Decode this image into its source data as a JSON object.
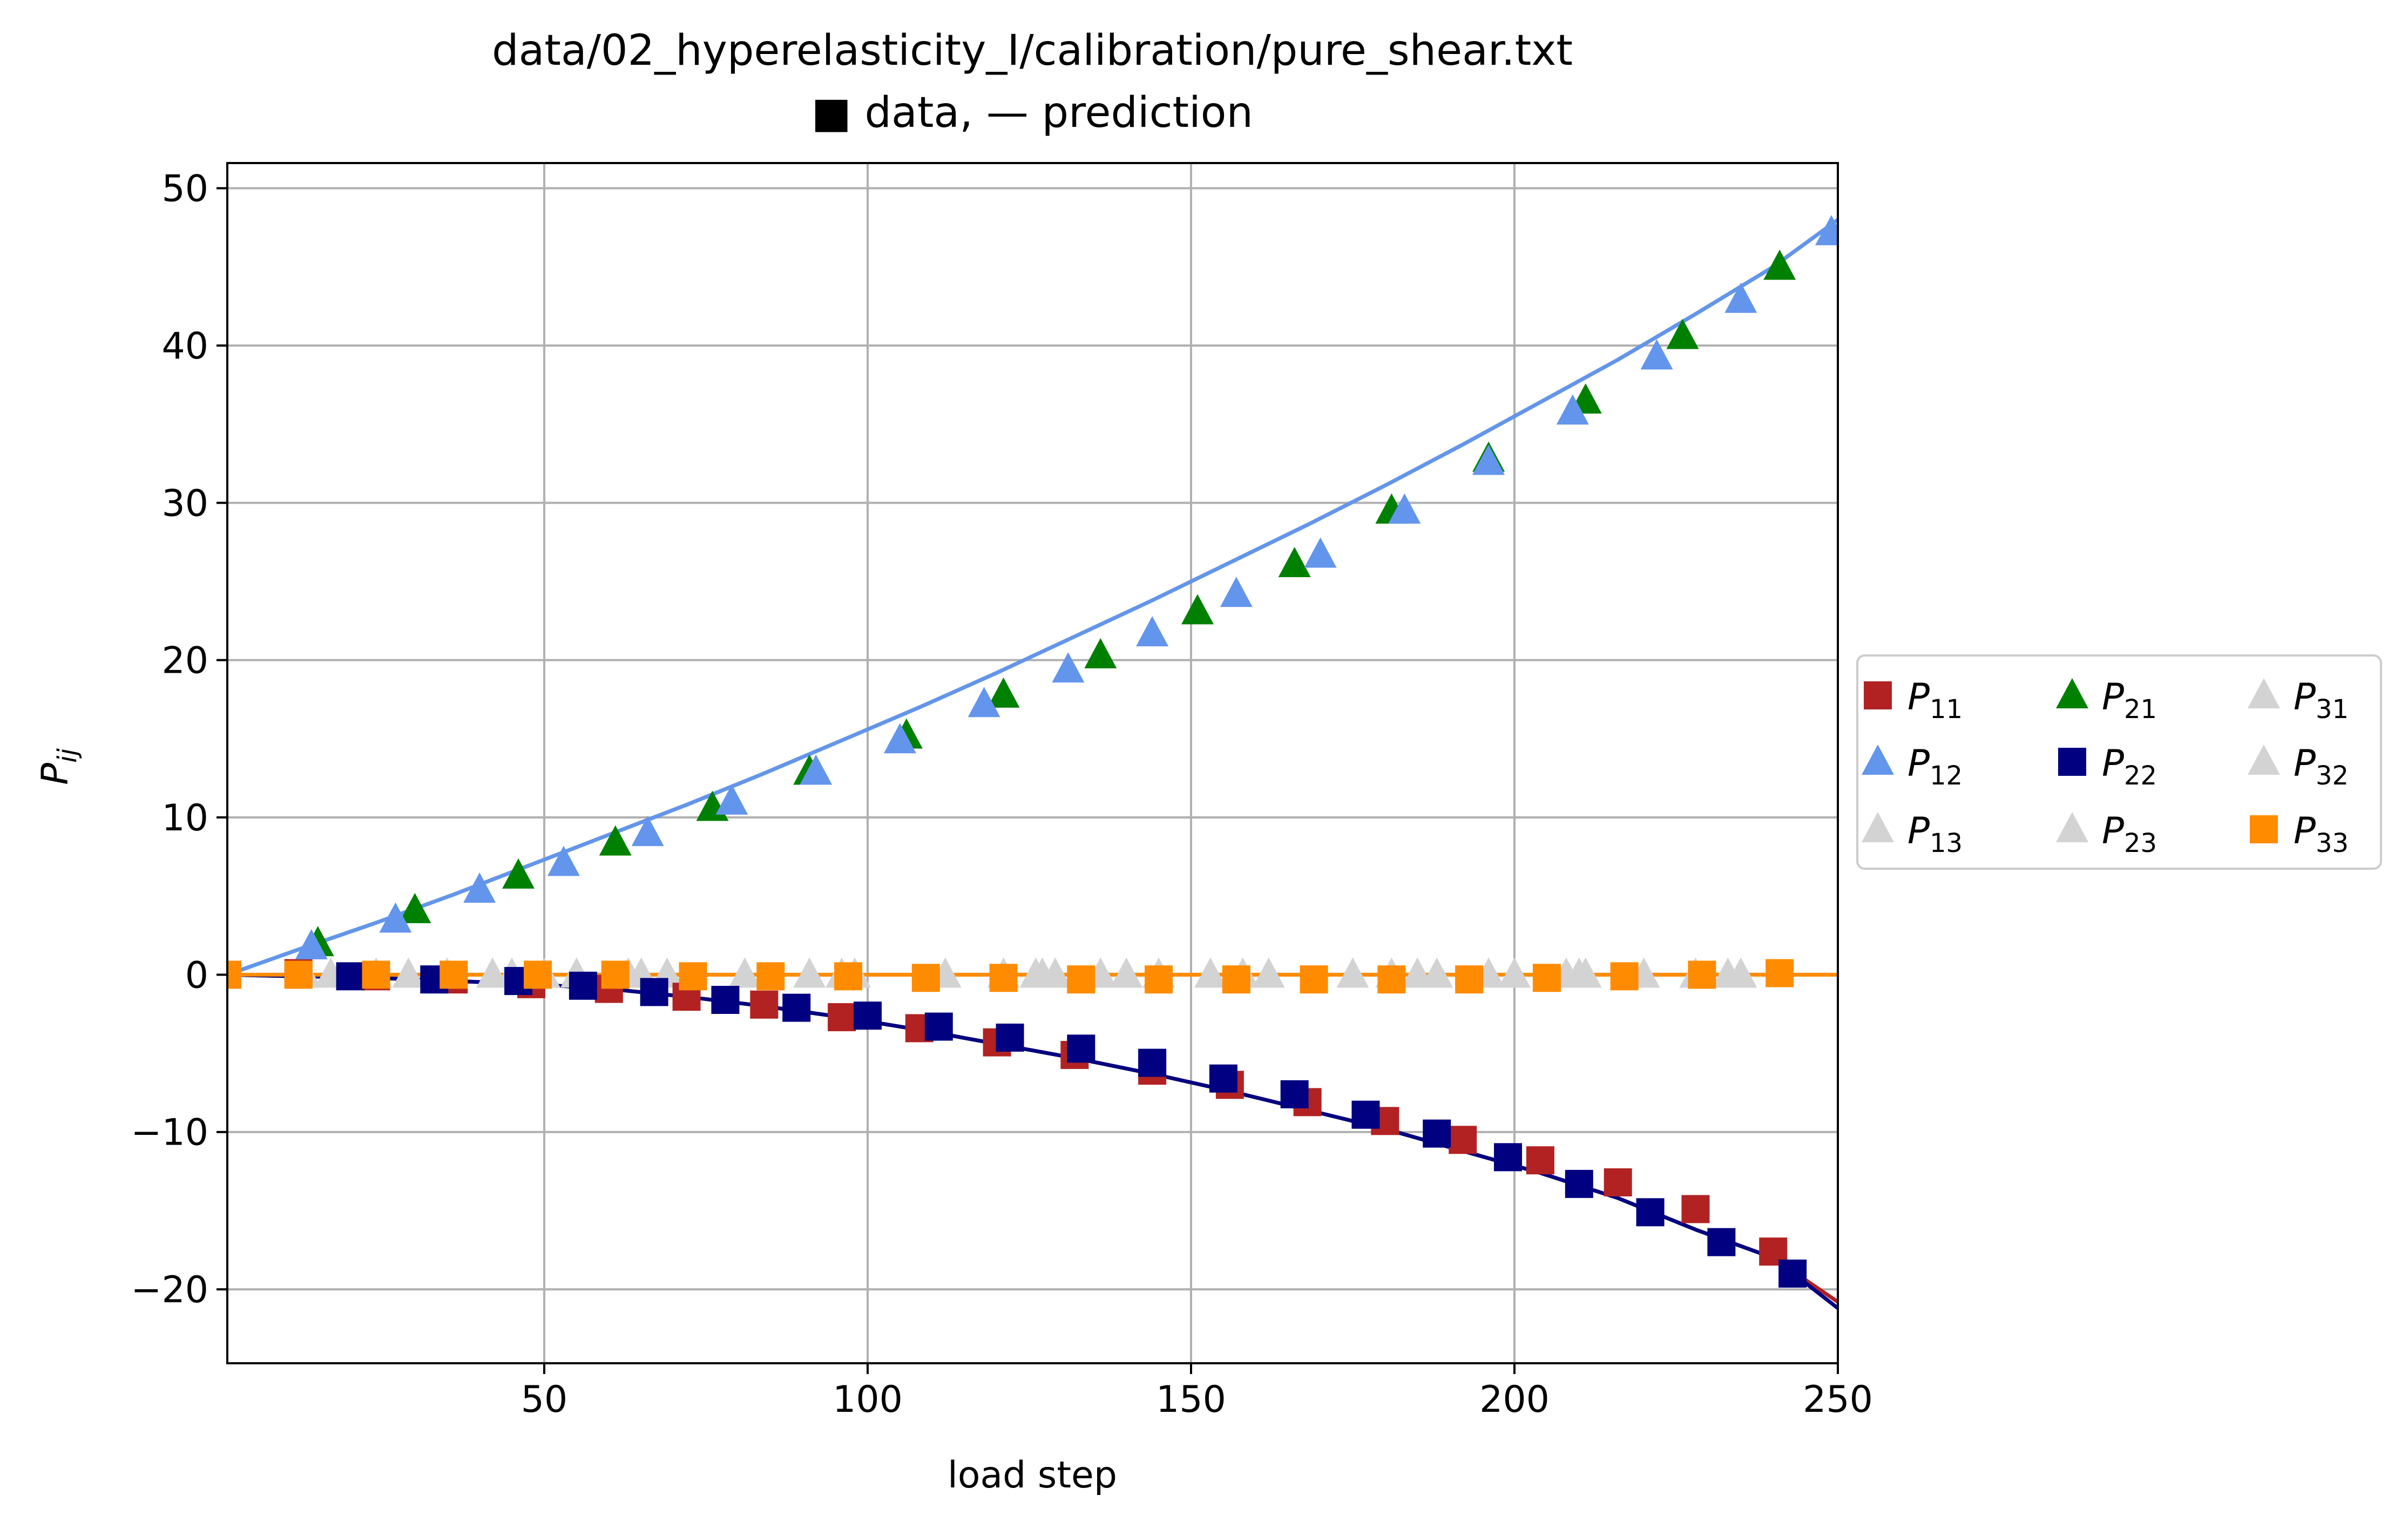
{
  "chart_data": {
    "type": "line",
    "title": "data/02_hyperelasticity_I/calibration/pure_shear.txt",
    "subtitle": "■ data, — prediction",
    "xlabel": "load step",
    "ylabel": "P",
    "ylabel_sub": "ij",
    "xlim": [
      1,
      250
    ],
    "ylim": [
      -24.7,
      51.6
    ],
    "xticks": [
      50,
      100,
      150,
      200,
      250
    ],
    "yticks": [
      50,
      40,
      30,
      20,
      10,
      0,
      -10,
      -20
    ],
    "xtick_labels": [
      "50",
      "100",
      "150",
      "200",
      "250"
    ],
    "ytick_labels": [
      "50",
      "40",
      "30",
      "20",
      "10",
      "0",
      "−10",
      "−20"
    ],
    "grid": true,
    "legend_position": "outside-right",
    "series": [
      {
        "name": "P",
        "sub": "11",
        "color": "#b22222",
        "marker": "square",
        "legend_pos": 0,
        "x": [
          1,
          12,
          24,
          36,
          48,
          60,
          72,
          84,
          96,
          108,
          120,
          132,
          144,
          156,
          168,
          180,
          192,
          204,
          216,
          228,
          240,
          250
        ],
        "y": [
          0,
          -0.1,
          -0.2,
          -0.4,
          -0.6,
          -0.9,
          -1.4,
          -2.0,
          -2.7,
          -3.5,
          -4.4,
          -5.3,
          -6.3,
          -7.4,
          -8.6,
          -9.8,
          -11.2,
          -12.6,
          -14.2,
          -16.2,
          -18.0,
          -20.8
        ],
        "px": [
          12,
          24,
          36,
          48,
          60,
          72,
          84,
          96,
          108,
          120,
          132,
          144,
          156,
          168,
          180,
          192,
          204,
          216,
          228,
          240
        ],
        "py": [
          0.1,
          -0.1,
          -0.3,
          -0.6,
          -0.9,
          -1.4,
          -1.9,
          -2.7,
          -3.4,
          -4.3,
          -5.1,
          -6.1,
          -7.0,
          -8.1,
          -9.3,
          -10.5,
          -11.8,
          -13.2,
          -14.9,
          -17.6
        ]
      },
      {
        "name": "P",
        "sub": "21",
        "color": "#008000",
        "marker": "triangle",
        "legend_pos": 3,
        "x": [
          1,
          12,
          24,
          36,
          48,
          60,
          72,
          84,
          96,
          108,
          120,
          132,
          144,
          156,
          168,
          180,
          192,
          204,
          216,
          228,
          240,
          250
        ],
        "y": [
          0,
          1.6,
          3.3,
          5.1,
          7.0,
          8.9,
          10.8,
          12.8,
          14.9,
          17.0,
          19.2,
          21.5,
          23.8,
          26.2,
          28.6,
          31.1,
          33.7,
          36.4,
          39.1,
          42.0,
          45.0,
          48.0
        ],
        "px": [
          15,
          30,
          46,
          61,
          76,
          91,
          106,
          121,
          136,
          151,
          166,
          181,
          196,
          211,
          226,
          241
        ],
        "py": [
          2.0,
          4.1,
          6.3,
          8.4,
          10.6,
          12.9,
          15.2,
          17.8,
          20.3,
          23.1,
          26.1,
          29.5,
          32.8,
          36.5,
          40.6,
          45.0
        ]
      },
      {
        "name": "P",
        "sub": "31",
        "color": "#d3d3d3",
        "marker": "triangle",
        "legend_pos": 6,
        "x": [
          1,
          250
        ],
        "y": [
          0,
          0
        ],
        "px": [
          17,
          42,
          69,
          98,
          126,
          153,
          181,
          208,
          235
        ],
        "py": [
          0,
          0,
          0,
          0,
          0,
          0,
          0,
          0,
          0
        ]
      },
      {
        "name": "P",
        "sub": "12",
        "color": "#6495ed",
        "marker": "triangle",
        "legend_pos": 1,
        "x": [
          1,
          12,
          24,
          36,
          48,
          60,
          72,
          84,
          96,
          108,
          120,
          132,
          144,
          156,
          168,
          180,
          192,
          204,
          216,
          228,
          240,
          250
        ],
        "y": [
          0,
          1.6,
          3.3,
          5.1,
          7.0,
          8.9,
          10.8,
          12.8,
          14.9,
          17.0,
          19.2,
          21.5,
          23.8,
          26.2,
          28.6,
          31.1,
          33.7,
          36.4,
          39.1,
          42.0,
          45.0,
          48.0
        ],
        "px": [
          14,
          27,
          40,
          53,
          66,
          79,
          92,
          105,
          118,
          131,
          144,
          157,
          170,
          183,
          196,
          209,
          222,
          235,
          249
        ],
        "py": [
          1.8,
          3.5,
          5.4,
          7.1,
          9.0,
          11.0,
          12.9,
          14.9,
          17.2,
          19.4,
          21.7,
          24.2,
          26.7,
          29.5,
          32.6,
          35.8,
          39.3,
          42.9,
          47.2
        ]
      },
      {
        "name": "P",
        "sub": "22",
        "color": "#000080",
        "marker": "square",
        "legend_pos": 4,
        "x": [
          1,
          12,
          24,
          36,
          48,
          60,
          72,
          84,
          96,
          108,
          120,
          132,
          144,
          156,
          168,
          180,
          192,
          204,
          216,
          228,
          240,
          250
        ],
        "y": [
          0,
          -0.1,
          -0.2,
          -0.4,
          -0.6,
          -0.9,
          -1.4,
          -2.0,
          -2.7,
          -3.5,
          -4.4,
          -5.3,
          -6.3,
          -7.4,
          -8.6,
          -9.8,
          -11.2,
          -12.6,
          -14.2,
          -16.2,
          -18.0,
          -21.2
        ],
        "px": [
          20,
          33,
          46,
          56,
          67,
          78,
          89,
          100,
          111,
          122,
          133,
          144,
          155,
          166,
          177,
          188,
          199,
          210,
          221,
          232,
          243
        ],
        "py": [
          -0.1,
          -0.3,
          -0.4,
          -0.7,
          -1.1,
          -1.6,
          -2.1,
          -2.6,
          -3.3,
          -4.0,
          -4.7,
          -5.6,
          -6.6,
          -7.6,
          -8.9,
          -10.1,
          -11.6,
          -13.3,
          -15.1,
          -17.0,
          -19.0
        ]
      },
      {
        "name": "P",
        "sub": "32",
        "color": "#d3d3d3",
        "marker": "triangle",
        "legend_pos": 7,
        "x": [
          1,
          250
        ],
        "y": [
          0,
          0
        ],
        "px": [
          13,
          35,
          55,
          81,
          112,
          127,
          140,
          158,
          175,
          188,
          210,
          228
        ],
        "py": [
          0,
          0,
          0,
          0,
          0,
          0,
          0,
          0,
          0,
          0,
          0,
          0
        ]
      },
      {
        "name": "P",
        "sub": "13",
        "color": "#d3d3d3",
        "marker": "triangle",
        "legend_pos": 2,
        "x": [
          1,
          250
        ],
        "y": [
          0,
          0
        ],
        "px": [
          24,
          45,
          63,
          91,
          121,
          136,
          162,
          196,
          220
        ],
        "py": [
          0,
          0,
          0,
          0,
          0,
          0,
          0,
          0,
          0
        ]
      },
      {
        "name": "P",
        "sub": "23",
        "color": "#d3d3d3",
        "marker": "triangle",
        "legend_pos": 5,
        "x": [
          1,
          250
        ],
        "y": [
          0,
          0
        ],
        "px": [
          29,
          50,
          65,
          96,
          129,
          145,
          185,
          200,
          211,
          233
        ],
        "py": [
          0,
          0,
          0,
          0,
          0,
          0,
          0,
          0,
          0,
          0
        ]
      },
      {
        "name": "P",
        "sub": "33",
        "color": "#ff8c00",
        "marker": "square",
        "legend_pos": 8,
        "x": [
          1,
          250
        ],
        "y": [
          0,
          0
        ],
        "px": [
          1,
          12,
          24,
          36,
          49,
          61,
          73,
          85,
          97,
          109,
          121,
          133,
          145,
          157,
          169,
          181,
          193,
          205,
          217,
          229,
          241
        ],
        "py": [
          0,
          0,
          0,
          0,
          0,
          0,
          -0.1,
          -0.1,
          -0.1,
          -0.2,
          -0.2,
          -0.3,
          -0.3,
          -0.3,
          -0.3,
          -0.3,
          -0.3,
          -0.2,
          -0.1,
          0,
          0.1
        ]
      }
    ]
  }
}
